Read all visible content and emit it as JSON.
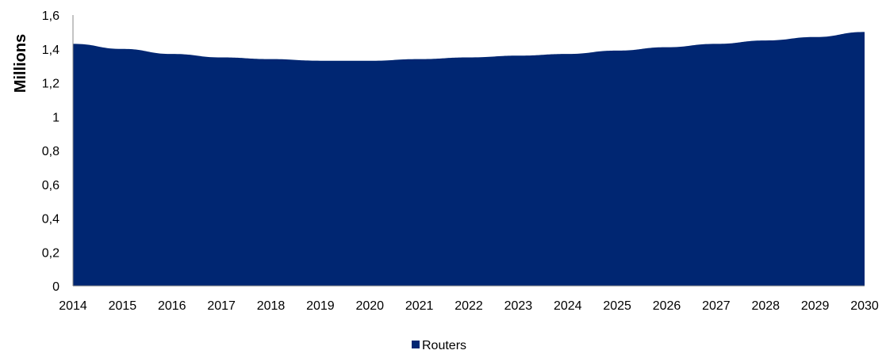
{
  "chart_data": {
    "type": "area",
    "x": [
      "2014",
      "2015",
      "2016",
      "2017",
      "2018",
      "2019",
      "2020",
      "2021",
      "2022",
      "2023",
      "2024",
      "2025",
      "2026",
      "2027",
      "2028",
      "2029",
      "2030"
    ],
    "series": [
      {
        "name": "Routers",
        "values": [
          1.43,
          1.4,
          1.37,
          1.35,
          1.34,
          1.33,
          1.33,
          1.34,
          1.35,
          1.36,
          1.37,
          1.39,
          1.41,
          1.43,
          1.45,
          1.47,
          1.5
        ],
        "color": "#002672"
      }
    ],
    "ylabel": "Millions",
    "ylim": [
      0,
      1.6
    ],
    "yticks": [
      0,
      0.2,
      0.4,
      0.6,
      0.8,
      1,
      1.2,
      1.4,
      1.6
    ],
    "ytick_labels": [
      "0",
      "0,2",
      "0,4",
      "0,6",
      "0,8",
      "1",
      "1,2",
      "1,4",
      "1,6"
    ],
    "grid": false,
    "legend_position": "bottom"
  }
}
